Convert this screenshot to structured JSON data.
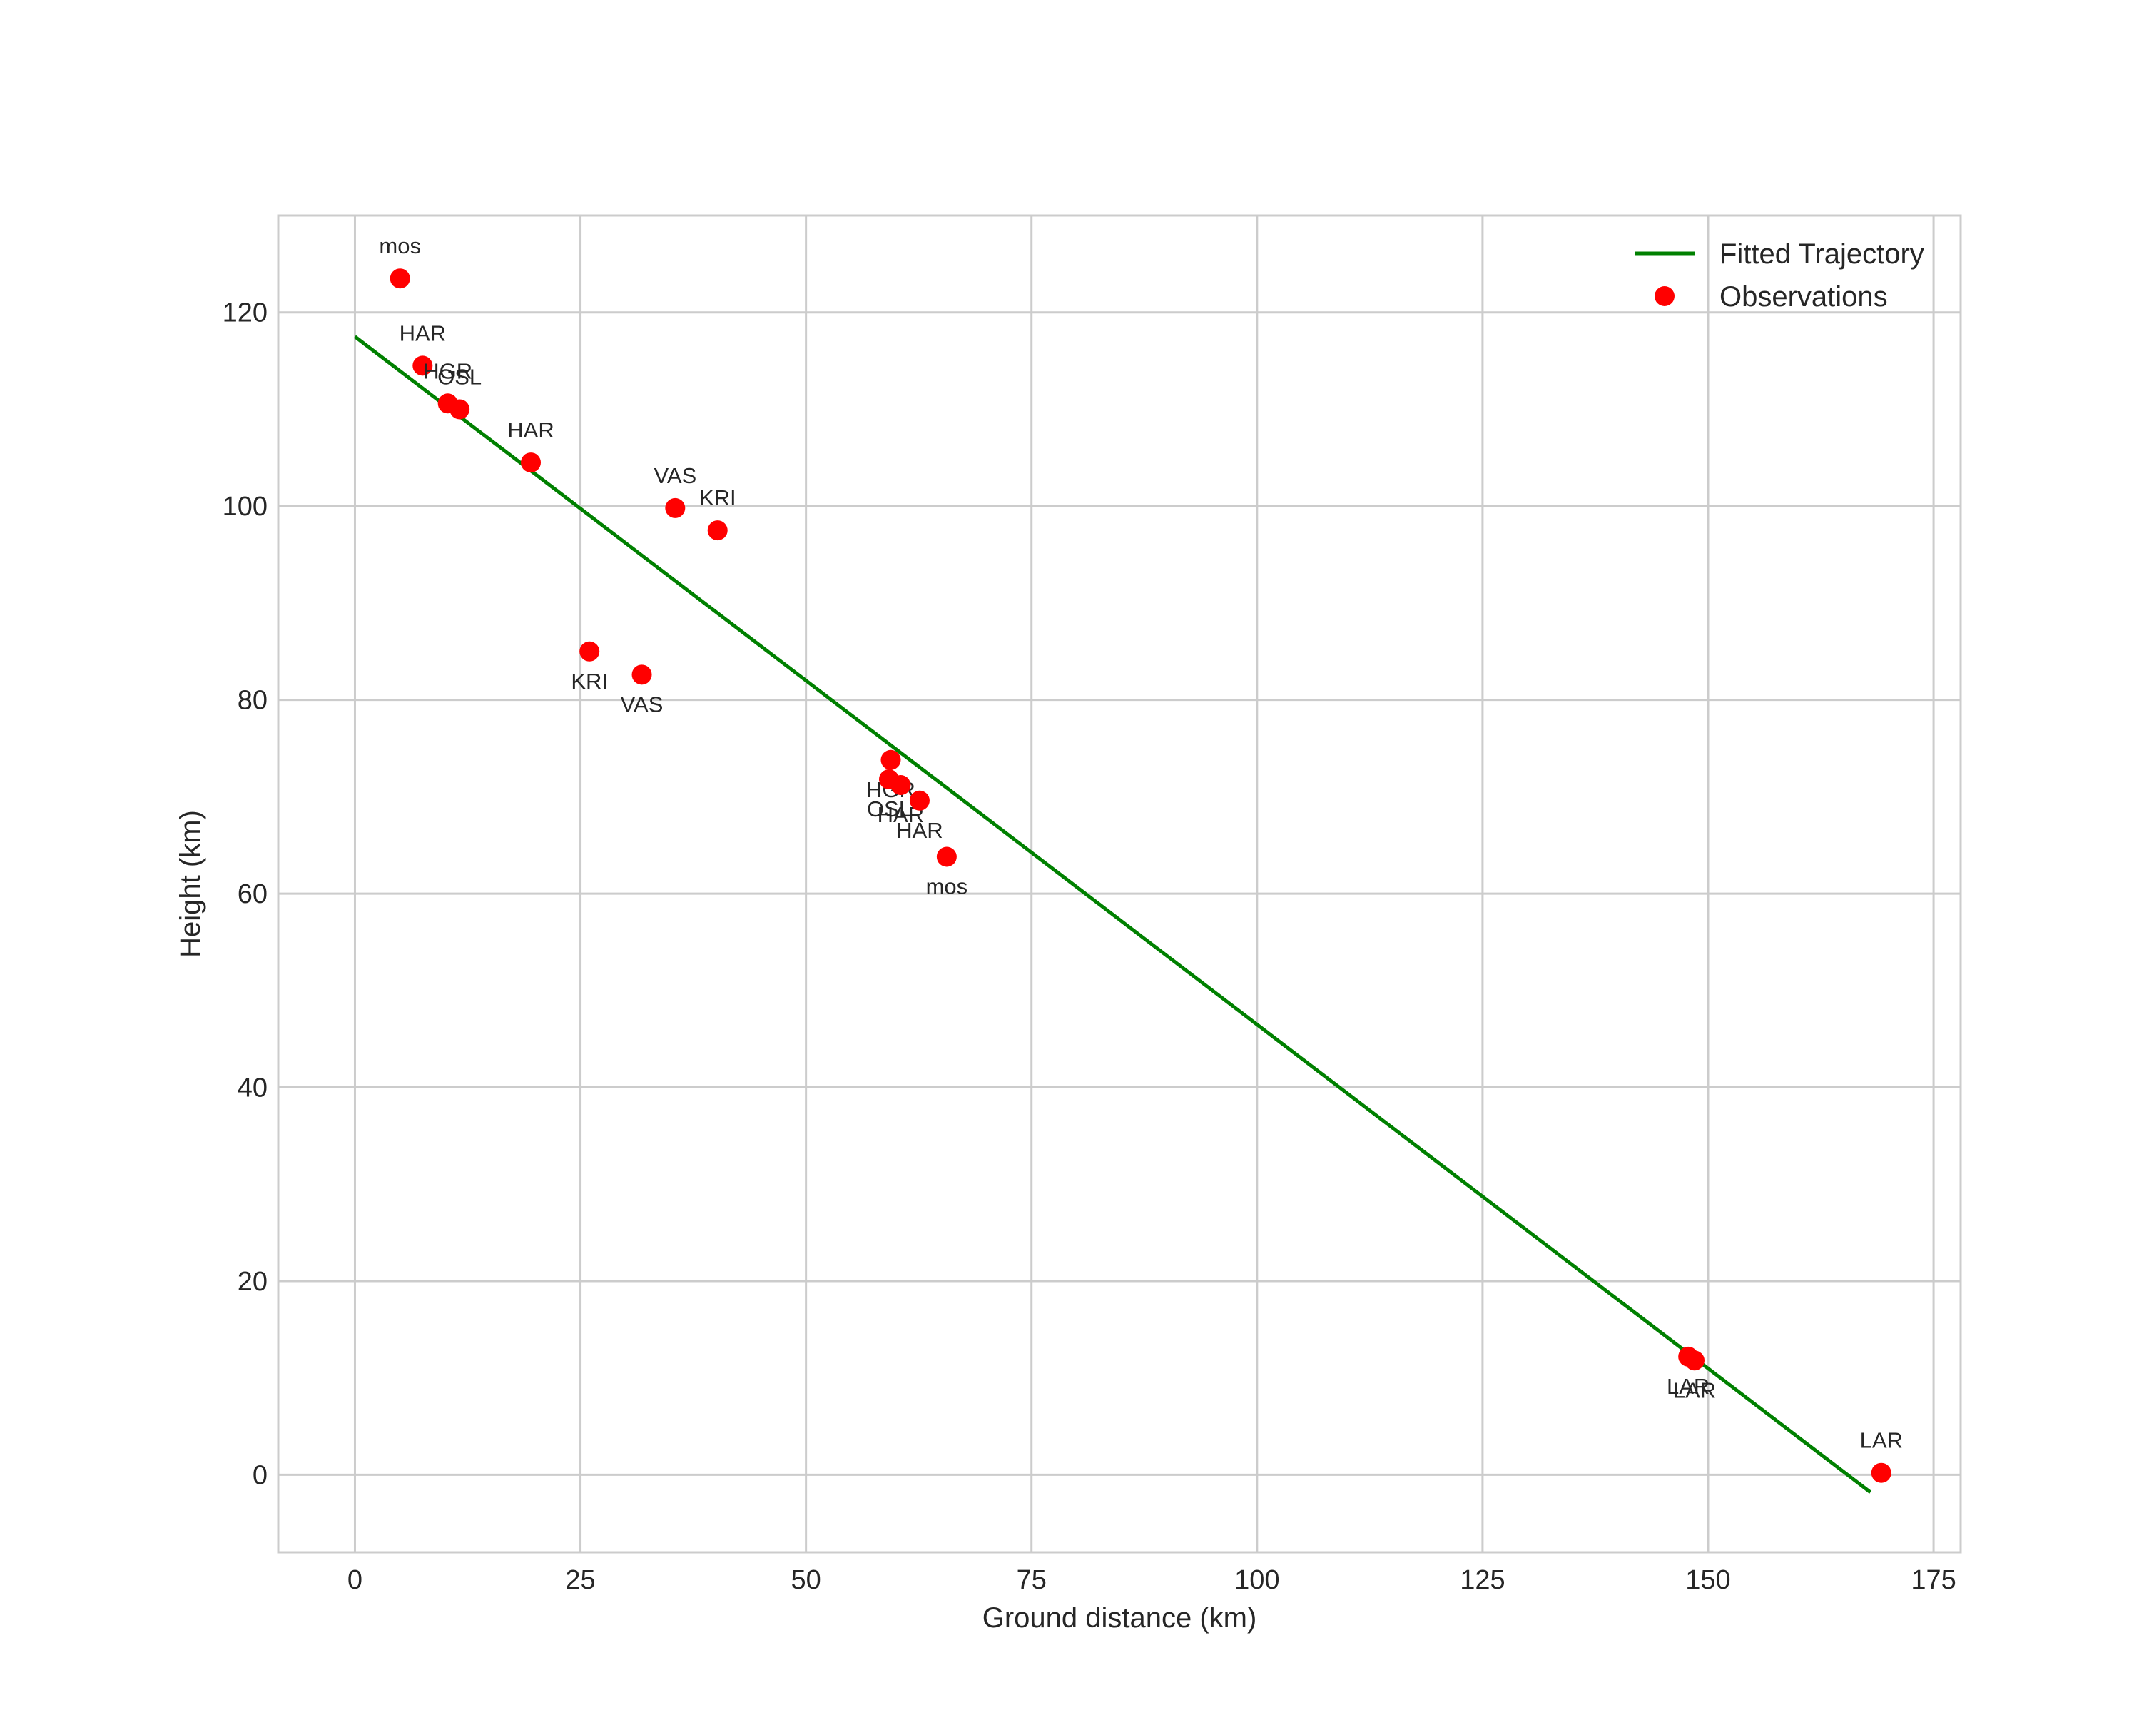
{
  "chart_data": {
    "type": "scatter",
    "title": "",
    "xlabel": "Ground distance (km)",
    "ylabel": "Height (km)",
    "xlim": [
      -8.5,
      178
    ],
    "ylim": [
      -8,
      130
    ],
    "grid": true,
    "legend_position": "top-right",
    "x_ticks": [
      0,
      25,
      50,
      75,
      100,
      125,
      150,
      175
    ],
    "y_ticks": [
      0,
      20,
      40,
      60,
      80,
      100,
      120
    ],
    "series": [
      {
        "name": "Fitted Trajectory",
        "kind": "line",
        "color": "#008000",
        "points": [
          {
            "x": 0,
            "y": 117.5
          },
          {
            "x": 168,
            "y": -1.8
          }
        ]
      },
      {
        "name": "Observations",
        "kind": "scatter",
        "color": "#ff0000",
        "points": [
          {
            "x": 5.0,
            "y": 123.5,
            "label": "mos",
            "label_pos": "above"
          },
          {
            "x": 7.5,
            "y": 114.5,
            "label": "HAR",
            "label_pos": "above"
          },
          {
            "x": 10.3,
            "y": 110.6,
            "label": "HGR",
            "label_pos": "above"
          },
          {
            "x": 11.6,
            "y": 110.0,
            "label": "OSL",
            "label_pos": "above"
          },
          {
            "x": 19.5,
            "y": 104.5,
            "label": "HAR",
            "label_pos": "above"
          },
          {
            "x": 35.5,
            "y": 99.8,
            "label": "VAS",
            "label_pos": "above"
          },
          {
            "x": 40.2,
            "y": 97.5,
            "label": "KRI",
            "label_pos": "above"
          },
          {
            "x": 26.0,
            "y": 85.0,
            "label": "KRI",
            "label_pos": "below"
          },
          {
            "x": 31.8,
            "y": 82.6,
            "label": "VAS",
            "label_pos": "below"
          },
          {
            "x": 59.4,
            "y": 73.8,
            "label": "HGR",
            "label_pos": "below"
          },
          {
            "x": 59.2,
            "y": 71.8,
            "label": "OSL",
            "label_pos": "below"
          },
          {
            "x": 60.5,
            "y": 71.2,
            "label": "HAR",
            "label_pos": "below"
          },
          {
            "x": 62.6,
            "y": 69.6,
            "label": "HAR",
            "label_pos": "below"
          },
          {
            "x": 65.6,
            "y": 63.8,
            "label": "mos",
            "label_pos": "below"
          },
          {
            "x": 147.8,
            "y": 12.2,
            "label": "LAR",
            "label_pos": "below"
          },
          {
            "x": 148.5,
            "y": 11.8,
            "label": "LAR",
            "label_pos": "below"
          },
          {
            "x": 169.2,
            "y": 0.2,
            "label": "LAR",
            "label_pos": "above"
          }
        ]
      }
    ]
  }
}
